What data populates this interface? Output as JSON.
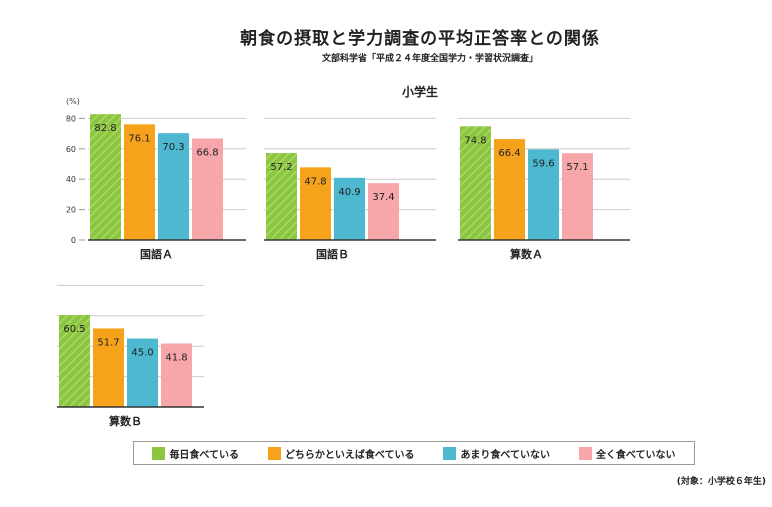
{
  "header": {
    "title": "朝食の摂取と学力調査の平均正答率との関係",
    "subtitle": "文部科学省「平成２４年度全国学力・学習状況調査」",
    "group_label": "小学生"
  },
  "footer_note": "(対象：小学校６年生)",
  "colors": {
    "series": [
      "#8cc63f",
      "#f7a21b",
      "#4db8cf",
      "#f7a6aa"
    ],
    "grid": "#cccccc",
    "axis": "#333333"
  },
  "chart_data": {
    "type": "bar",
    "ylabel": "(%)",
    "ylim": [
      0,
      80
    ],
    "yticks": [
      0,
      20,
      40,
      60,
      80
    ],
    "series_names": [
      "毎日食べている",
      "どちらかといえば食べている",
      "あまり食べていない",
      "全く食べていない"
    ],
    "panels": [
      {
        "label": "国語Ａ",
        "values": [
          82.8,
          76.1,
          70.3,
          66.8
        ],
        "value_labels": [
          "82.8",
          "76.1",
          "70.3",
          "66.8"
        ]
      },
      {
        "label": "国語Ｂ",
        "values": [
          57.2,
          47.8,
          40.9,
          37.4
        ],
        "value_labels": [
          "57.2",
          "47.8",
          "40.9",
          "37.4"
        ]
      },
      {
        "label": "算数Ａ",
        "values": [
          74.8,
          66.4,
          59.6,
          57.1
        ],
        "value_labels": [
          "74.8",
          "66.4",
          "59.6",
          "57.1"
        ]
      },
      {
        "label": "算数Ｂ",
        "values": [
          60.5,
          51.7,
          45.0,
          41.8
        ],
        "value_labels": [
          "60.5",
          "51.7",
          "45.0",
          "41.8"
        ]
      }
    ]
  }
}
